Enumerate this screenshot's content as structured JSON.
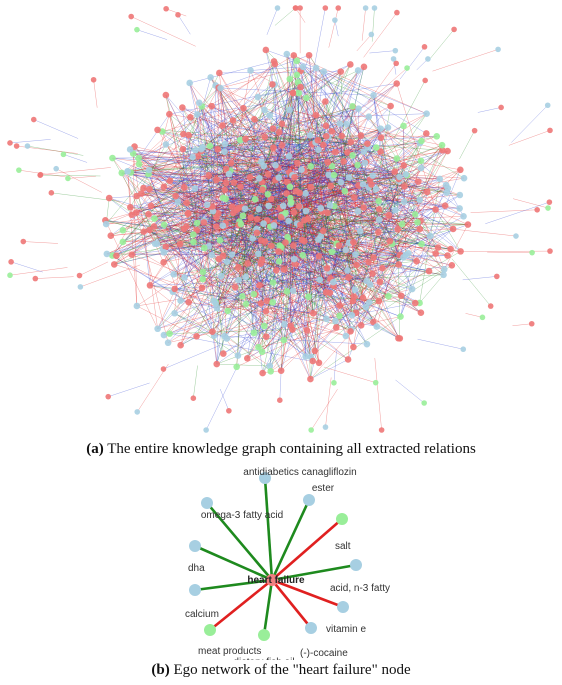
{
  "figure_a": {
    "caption_letter": "(a)",
    "caption_text": "The entire knowledge graph containing all extracted relations"
  },
  "figure_b": {
    "caption_letter": "(b)",
    "caption_text": "Ego network of the \"heart failure\" node",
    "center": {
      "label": "heart failure"
    },
    "neighbors": [
      {
        "label": "antidiabetics canagliflozin",
        "node_color": "#a7cfe2",
        "edge_color": "#1e8a1e"
      },
      {
        "label": "ester",
        "node_color": "#a7cfe2",
        "edge_color": "#1e8a1e"
      },
      {
        "label": "omega-3 fatty acid",
        "node_color": "#a7cfe2",
        "edge_color": "#1e8a1e"
      },
      {
        "label": "salt",
        "node_color": "#99ee99",
        "edge_color": "#e02020"
      },
      {
        "label": "dha",
        "node_color": "#a7cfe2",
        "edge_color": "#1e8a1e"
      },
      {
        "label": "acid, n-3 fatty",
        "node_color": "#a7cfe2",
        "edge_color": "#1e8a1e"
      },
      {
        "label": "calcium",
        "node_color": "#a7cfe2",
        "edge_color": "#1e8a1e"
      },
      {
        "label": "vitamin e",
        "node_color": "#a7cfe2",
        "edge_color": "#e02020"
      },
      {
        "label": "meat products",
        "node_color": "#99ee99",
        "edge_color": "#e02020"
      },
      {
        "label": "(-)-cocaine",
        "node_color": "#a7cfe2",
        "edge_color": "#e02020"
      },
      {
        "label": "dietary fish oil",
        "node_color": "#99ee99",
        "edge_color": "#1e8a1e"
      }
    ]
  },
  "colors": {
    "node_red": "#ee7777",
    "node_blue": "#a7cfe2",
    "node_green": "#99ee99",
    "edge_red": "#e02020",
    "edge_blue": "#2a3fd0",
    "edge_green": "#1e8a1e",
    "center_node": "#f08080"
  }
}
